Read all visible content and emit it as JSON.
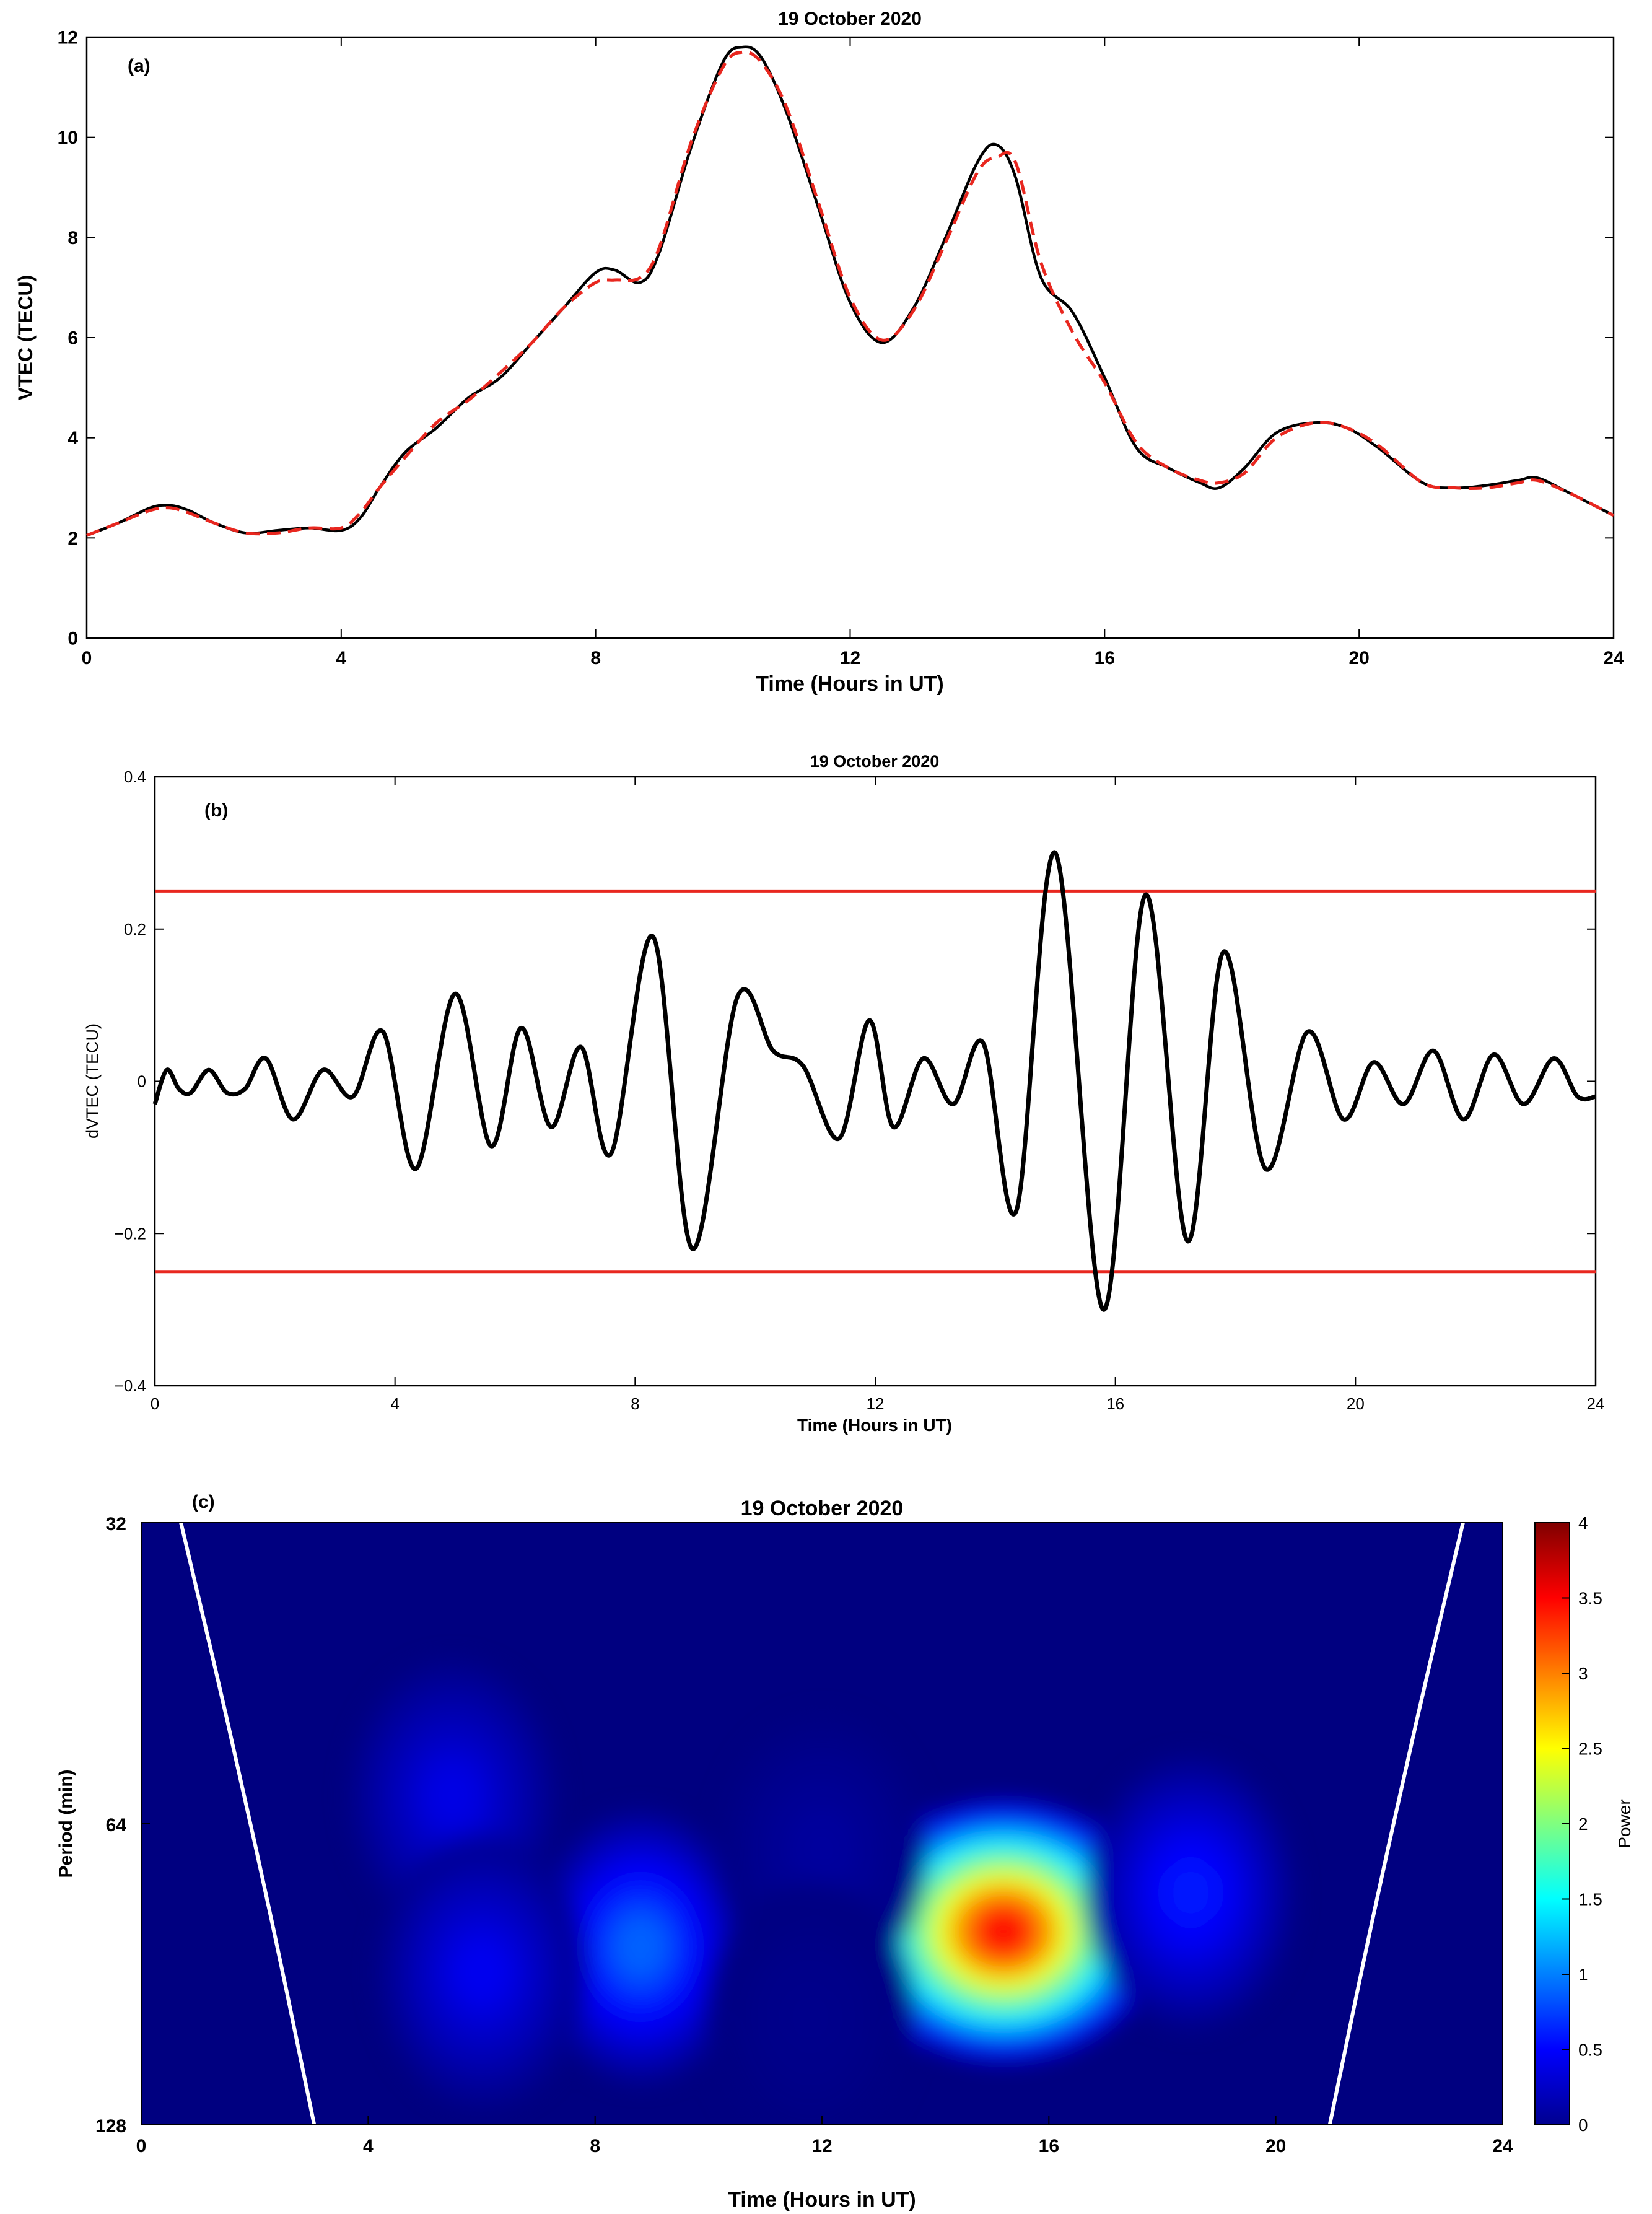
{
  "figure": {
    "panels": [
      {
        "id": "a",
        "tag": "(a)",
        "title": "19 October 2020",
        "xlabel": "Time (Hours in UT)",
        "ylabel": "VTEC (TECU)"
      },
      {
        "id": "b",
        "tag": "(b)",
        "title": "19 October 2020",
        "xlabel": "Time (Hours in UT)",
        "ylabel": "dVTEC (TECU)"
      },
      {
        "id": "c",
        "tag": "(c)",
        "title": "19 October 2020",
        "xlabel": "Time (Hours in UT)",
        "ylabel": "Period (min)",
        "colorbar_label": "Power"
      }
    ]
  },
  "chart_data": [
    {
      "type": "line",
      "panel": "a",
      "title": "19 October 2020",
      "xlabel": "Time (Hours in UT)",
      "ylabel": "VTEC (TECU)",
      "xlim": [
        0,
        24
      ],
      "ylim": [
        0,
        12
      ],
      "xticks": [
        0,
        4,
        8,
        12,
        16,
        20,
        24
      ],
      "yticks": [
        0,
        2,
        4,
        6,
        8,
        10,
        12
      ],
      "series": [
        {
          "style": "solid",
          "color": "#000000",
          "x": [
            0,
            0.5,
            1,
            1.3,
            1.6,
            2,
            2.5,
            3,
            3.5,
            4,
            4.3,
            4.6,
            5,
            5.5,
            6,
            6.5,
            7,
            7.5,
            8,
            8.3,
            8.7,
            9,
            9.5,
            10,
            10.3,
            10.6,
            11,
            11.5,
            12,
            12.5,
            13,
            13.5,
            14,
            14.3,
            14.6,
            15,
            15.5,
            16,
            16.5,
            17,
            17.5,
            17.8,
            18.2,
            18.7,
            19.3,
            19.8,
            20.3,
            21,
            21.5,
            22,
            22.5,
            22.8,
            23.3,
            24
          ],
          "y": [
            2.05,
            2.3,
            2.6,
            2.65,
            2.55,
            2.3,
            2.1,
            2.15,
            2.2,
            2.15,
            2.4,
            3.0,
            3.7,
            4.2,
            4.8,
            5.2,
            5.9,
            6.6,
            7.3,
            7.35,
            7.1,
            7.7,
            9.8,
            11.5,
            11.8,
            11.6,
            10.5,
            8.6,
            6.7,
            5.9,
            6.6,
            8.0,
            9.5,
            9.85,
            9.2,
            7.2,
            6.5,
            5.2,
            3.8,
            3.4,
            3.1,
            3.0,
            3.4,
            4.1,
            4.3,
            4.2,
            3.8,
            3.1,
            3.0,
            3.05,
            3.15,
            3.2,
            2.9,
            2.45
          ]
        },
        {
          "style": "dashed",
          "color": "#e8271f",
          "x": [
            0,
            0.5,
            1,
            1.3,
            1.6,
            2,
            2.5,
            3,
            3.5,
            4,
            4.3,
            4.6,
            5,
            5.5,
            6,
            6.5,
            7,
            7.5,
            8,
            8.3,
            8.7,
            9,
            9.5,
            10,
            10.3,
            10.6,
            11,
            11.5,
            12,
            12.5,
            13,
            13.5,
            14,
            14.3,
            14.6,
            15,
            15.5,
            16,
            16.5,
            17,
            17.5,
            17.8,
            18.2,
            18.7,
            19.3,
            19.8,
            20.3,
            21,
            21.5,
            22,
            22.5,
            22.8,
            23.3,
            24
          ],
          "y": [
            2.05,
            2.3,
            2.55,
            2.6,
            2.5,
            2.3,
            2.1,
            2.1,
            2.2,
            2.2,
            2.5,
            3.0,
            3.6,
            4.3,
            4.75,
            5.3,
            5.9,
            6.6,
            7.1,
            7.15,
            7.2,
            7.8,
            9.9,
            11.4,
            11.7,
            11.5,
            10.6,
            8.7,
            6.8,
            5.95,
            6.55,
            7.9,
            9.3,
            9.6,
            9.5,
            7.5,
            6.1,
            5.1,
            3.9,
            3.4,
            3.15,
            3.1,
            3.3,
            4.0,
            4.3,
            4.2,
            3.85,
            3.1,
            3.0,
            3.0,
            3.1,
            3.15,
            2.9,
            2.45
          ]
        }
      ]
    },
    {
      "type": "line",
      "panel": "b",
      "title": "19 October 2020",
      "xlabel": "Time (Hours in UT)",
      "ylabel": "dVTEC (TECU)",
      "xlim": [
        0,
        24
      ],
      "ylim": [
        -0.4,
        0.4
      ],
      "xticks": [
        0,
        4,
        8,
        12,
        16,
        20,
        24
      ],
      "yticks": [
        -0.4,
        -0.2,
        0,
        0.2,
        0.4
      ],
      "threshold_lines": {
        "values": [
          0.25,
          -0.25
        ],
        "color": "#e8271f"
      },
      "series": [
        {
          "style": "solid",
          "color": "#000000",
          "x": [
            0,
            0.2,
            0.4,
            0.6,
            0.9,
            1.2,
            1.5,
            1.85,
            2.3,
            2.8,
            3.3,
            3.8,
            4.35,
            5.0,
            5.6,
            6.1,
            6.6,
            7.1,
            7.6,
            8.3,
            8.95,
            9.7,
            10.3,
            10.8,
            11.4,
            11.9,
            12.3,
            12.8,
            13.3,
            13.8,
            14.35,
            15.0,
            15.8,
            16.5,
            17.2,
            17.8,
            18.5,
            19.2,
            19.8,
            20.3,
            20.8,
            21.3,
            21.8,
            22.3,
            22.8,
            23.3,
            23.7,
            24
          ],
          "y": [
            -0.03,
            0.015,
            -0.01,
            -0.015,
            0.015,
            -0.015,
            -0.01,
            0.03,
            -0.05,
            0.015,
            -0.02,
            0.065,
            -0.115,
            0.115,
            -0.085,
            0.07,
            -0.06,
            0.045,
            -0.095,
            0.19,
            -0.22,
            0.11,
            0.04,
            0.02,
            -0.075,
            0.08,
            -0.06,
            0.03,
            -0.03,
            0.05,
            -0.17,
            0.3,
            -0.3,
            0.245,
            -0.21,
            0.17,
            -0.115,
            0.065,
            -0.05,
            0.025,
            -0.03,
            0.04,
            -0.05,
            0.035,
            -0.03,
            0.03,
            -0.02,
            -0.02
          ]
        }
      ]
    },
    {
      "type": "heatmap",
      "panel": "c",
      "title": "19 October 2020",
      "xlabel": "Time (Hours in UT)",
      "ylabel": "Period (min)",
      "xlim": [
        0,
        24
      ],
      "xticks": [
        0,
        4,
        8,
        12,
        16,
        20,
        24
      ],
      "yticks": [
        32,
        64,
        128
      ],
      "yscale": "log2",
      "ylim": [
        32,
        128
      ],
      "colorbar": {
        "label": "Power",
        "range": [
          0,
          4
        ],
        "ticks": [
          0,
          0.5,
          1,
          1.5,
          2,
          2.5,
          3,
          3.5,
          4
        ],
        "colormap": "jet"
      },
      "peaks": [
        {
          "time": 15.2,
          "period": 82,
          "power": 3.5
        },
        {
          "time": 8.8,
          "period": 85,
          "power": 0.9
        },
        {
          "time": 5.5,
          "period": 60,
          "power": 0.4
        },
        {
          "time": 12.0,
          "period": 68,
          "power": 0.12
        },
        {
          "time": 11.8,
          "period": 100,
          "power": 0.05
        },
        {
          "time": 6.0,
          "period": 90,
          "power": 0.45
        },
        {
          "time": 18.5,
          "period": 75,
          "power": 0.6
        }
      ],
      "cone_of_influence": {
        "color": "#ffffff",
        "left": {
          "x": [
            0.7,
            1.5,
            2.3,
            3.05
          ],
          "period": [
            32,
            50,
            80,
            128
          ]
        },
        "right": {
          "x": [
            23.3,
            22.5,
            21.7,
            20.95
          ],
          "period": [
            32,
            50,
            80,
            128
          ]
        }
      }
    }
  ]
}
